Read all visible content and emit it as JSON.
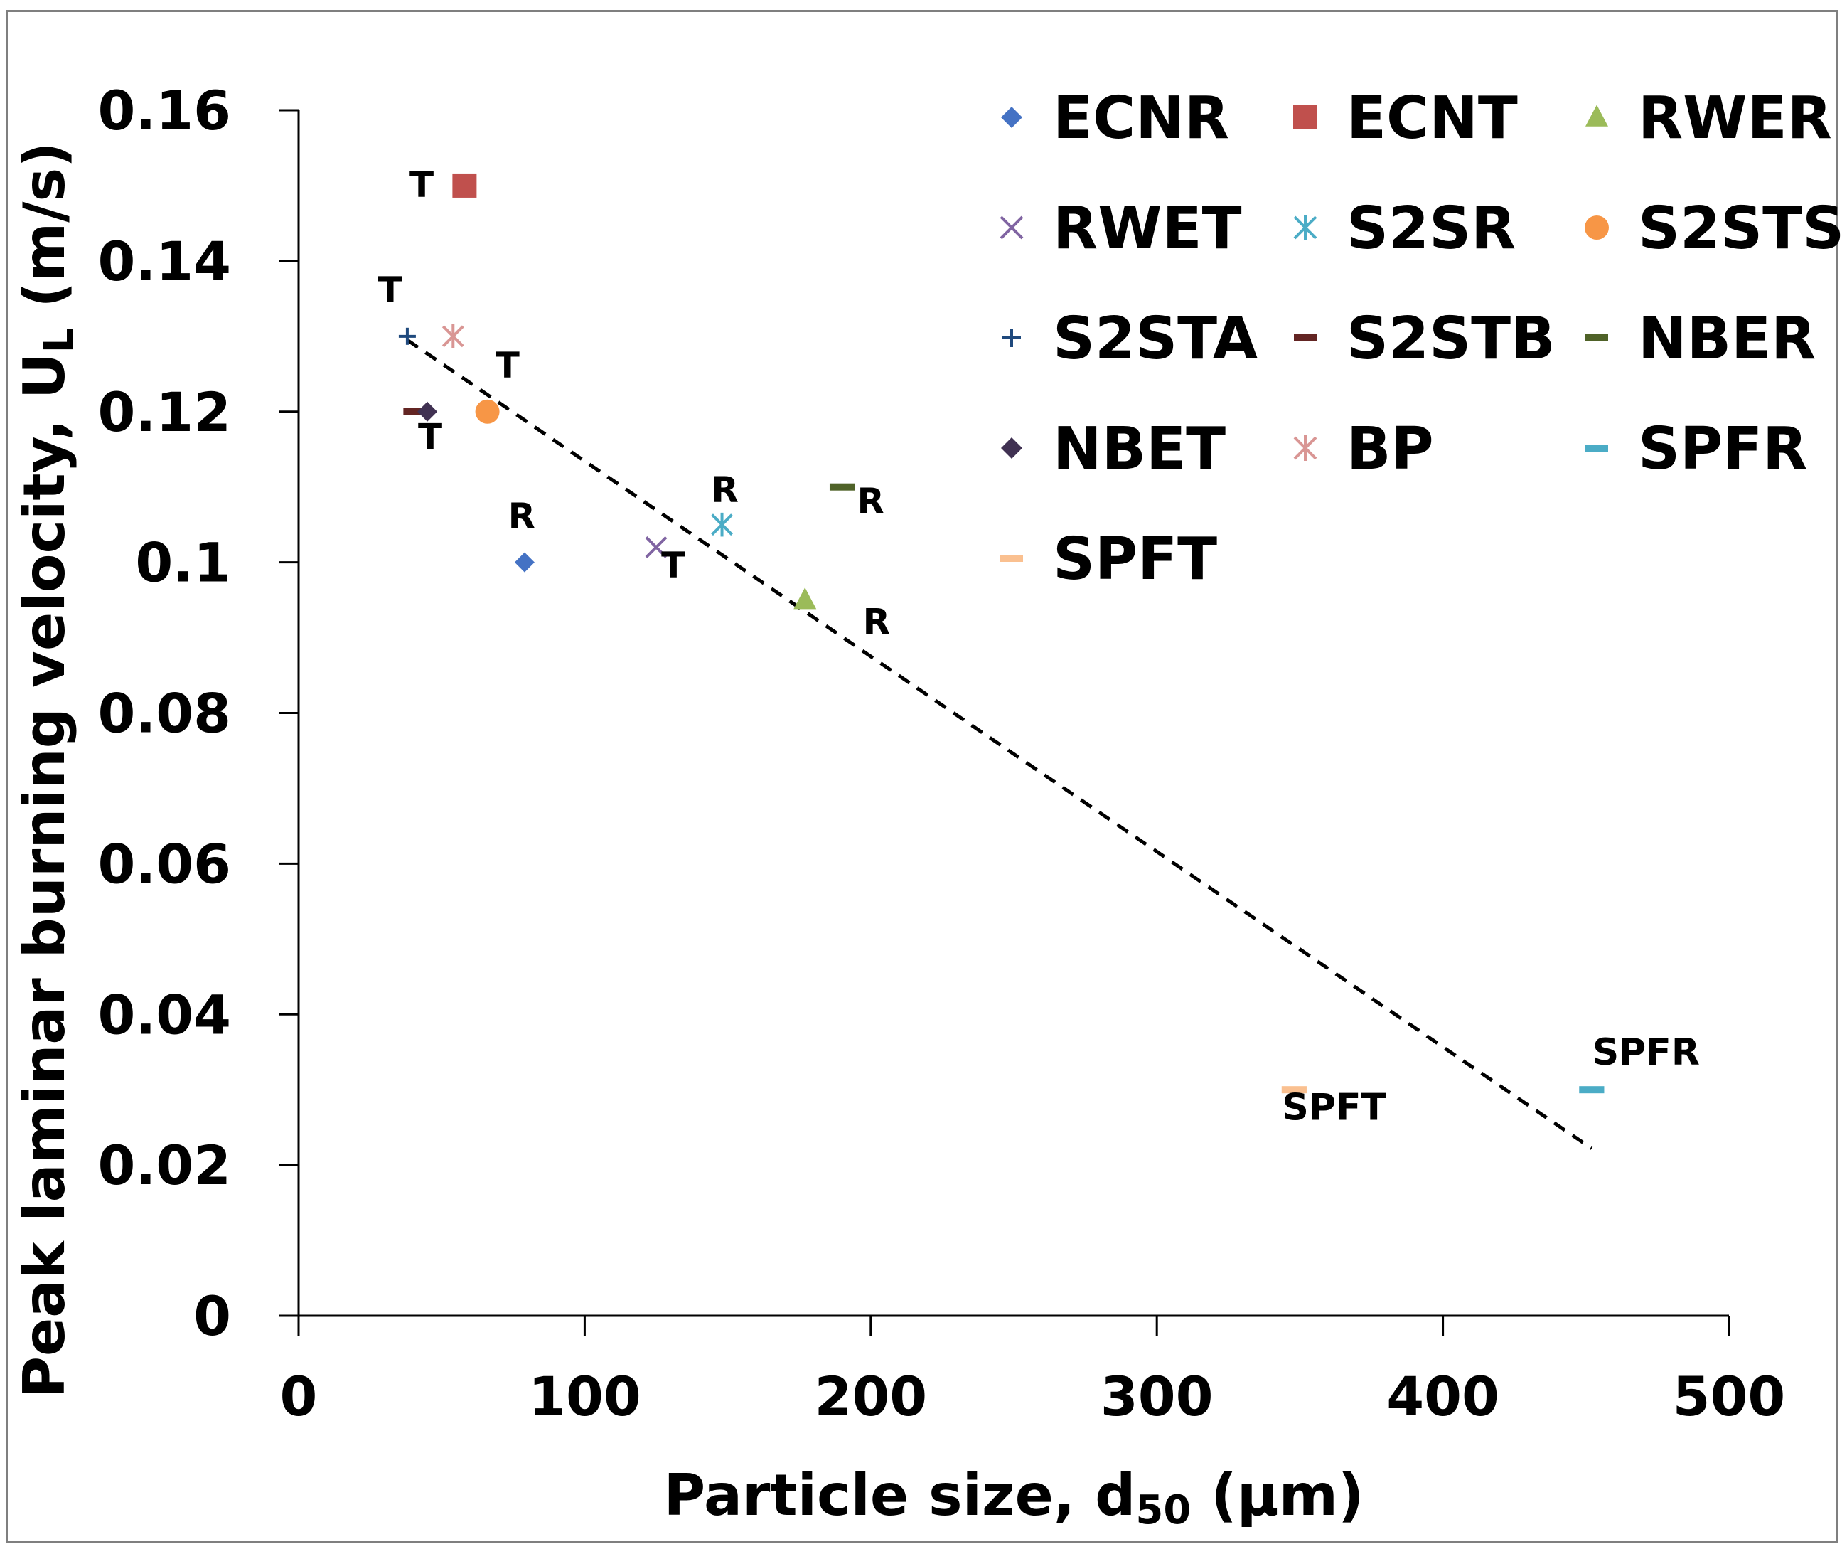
{
  "chart_data": {
    "type": "scatter",
    "title": "",
    "xlabel": {
      "main": "Particle size, d",
      "sub": "50",
      "tail": " (µm)"
    },
    "ylabel": {
      "main": "Peak laminar burning velocity, U",
      "sub": "L",
      "tail": " (m/s)"
    },
    "xlim": [
      0,
      500
    ],
    "ylim": [
      0,
      0.16
    ],
    "xticks": [
      0,
      100,
      200,
      300,
      400,
      500
    ],
    "xtick_labels": [
      "0",
      "100",
      "200",
      "300",
      "400",
      "500"
    ],
    "yticks": [
      0,
      0.02,
      0.04,
      0.06,
      0.08,
      0.1,
      0.12,
      0.14,
      0.16
    ],
    "ytick_labels": [
      "0",
      "0.02",
      "0.04",
      "0.06",
      "0.08",
      "0.1",
      "0.12",
      "0.14",
      "0.16"
    ],
    "grid": false,
    "legend_position": "top-right",
    "series": [
      {
        "name": "ECNR",
        "marker": "diamond",
        "color": "#4472C4",
        "x": 79,
        "y": 0.1
      },
      {
        "name": "ECNT",
        "marker": "square",
        "color": "#C0504D",
        "x": 58,
        "y": 0.15
      },
      {
        "name": "RWER",
        "marker": "triangle",
        "color": "#9BBB59",
        "x": 177,
        "y": 0.095
      },
      {
        "name": "RWET",
        "marker": "x",
        "color": "#8064A2",
        "x": 125,
        "y": 0.102
      },
      {
        "name": "S2SR",
        "marker": "star",
        "color": "#4BACC6",
        "x": 148,
        "y": 0.105
      },
      {
        "name": "S2STS",
        "marker": "circle",
        "color": "#F79646",
        "x": 66,
        "y": 0.12
      },
      {
        "name": "S2STA",
        "marker": "plus",
        "color": "#1F497D",
        "x": 38,
        "y": 0.13
      },
      {
        "name": "S2STB",
        "marker": "dash",
        "color": "#632523",
        "x": 41,
        "y": 0.12
      },
      {
        "name": "NBER",
        "marker": "dash",
        "color": "#4F6228",
        "x": 190,
        "y": 0.11
      },
      {
        "name": "NBET",
        "marker": "diamond",
        "color": "#403152",
        "x": 45,
        "y": 0.12
      },
      {
        "name": "BP",
        "marker": "star",
        "color": "#D99694",
        "x": 54,
        "y": 0.13
      },
      {
        "name": "SPFR",
        "marker": "dash",
        "color": "#4BACC6",
        "x": 452,
        "y": 0.03
      },
      {
        "name": "SPFT",
        "marker": "dash",
        "color": "#FAC090",
        "x": 348,
        "y": 0.03
      }
    ],
    "trendline": {
      "style": "dashed",
      "color": "#000000",
      "points": [
        [
          38,
          0.1295
        ],
        [
          452,
          0.0222
        ]
      ]
    },
    "annotations": [
      {
        "text": "T",
        "x": 43,
        "y": 0.1485
      },
      {
        "text": "T",
        "x": 32,
        "y": 0.1345
      },
      {
        "text": "T",
        "x": 73,
        "y": 0.1245
      },
      {
        "text": "T",
        "x": 46,
        "y": 0.115
      },
      {
        "text": "R",
        "x": 78,
        "y": 0.1045
      },
      {
        "text": "R",
        "x": 149,
        "y": 0.108
      },
      {
        "text": "T",
        "x": 131,
        "y": 0.098
      },
      {
        "text": "R",
        "x": 200,
        "y": 0.1065
      },
      {
        "text": "R",
        "x": 202,
        "y": 0.0905
      },
      {
        "text": "SPFR",
        "x": 471,
        "y": 0.0333
      },
      {
        "text": "SPFT",
        "x": 362,
        "y": 0.026
      }
    ]
  }
}
